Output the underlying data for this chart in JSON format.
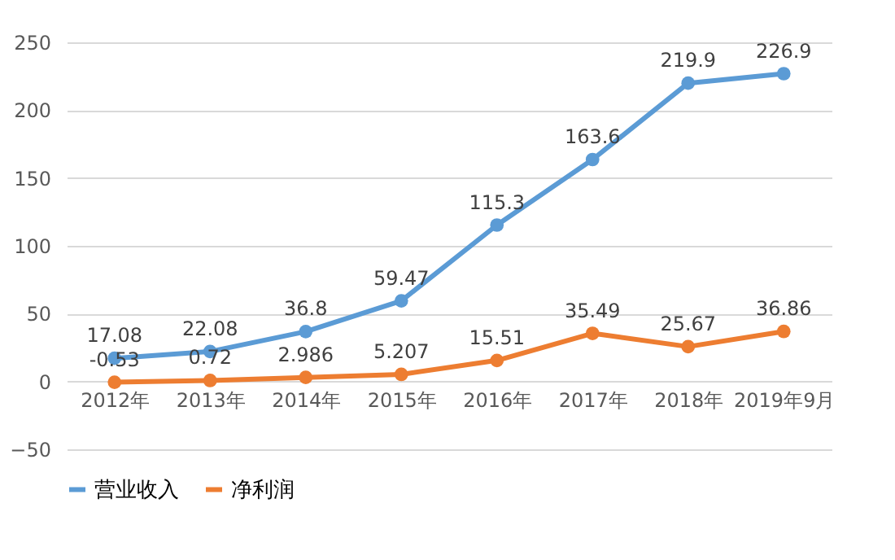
{
  "chart_data": {
    "type": "line",
    "categories": [
      "2012年",
      "2013年",
      "2014年",
      "2015年",
      "2016年",
      "2017年",
      "2018年",
      "2019年9月"
    ],
    "series": [
      {
        "name": "营业收入",
        "color": "#5b9bd5",
        "values": [
          17.08,
          22.08,
          36.8,
          59.47,
          115.3,
          163.6,
          219.9,
          226.9
        ]
      },
      {
        "name": "净利润",
        "color": "#ed7d31",
        "values": [
          -0.53,
          0.72,
          2.986,
          5.207,
          15.51,
          35.49,
          25.67,
          36.86
        ]
      }
    ],
    "ylim": [
      -50,
      250
    ],
    "yticks": [
      -50,
      0,
      50,
      100,
      150,
      200,
      250
    ],
    "grid": "y",
    "legend": "bottom",
    "marker": "circle",
    "line_style": "solid",
    "data_labels": true
  }
}
